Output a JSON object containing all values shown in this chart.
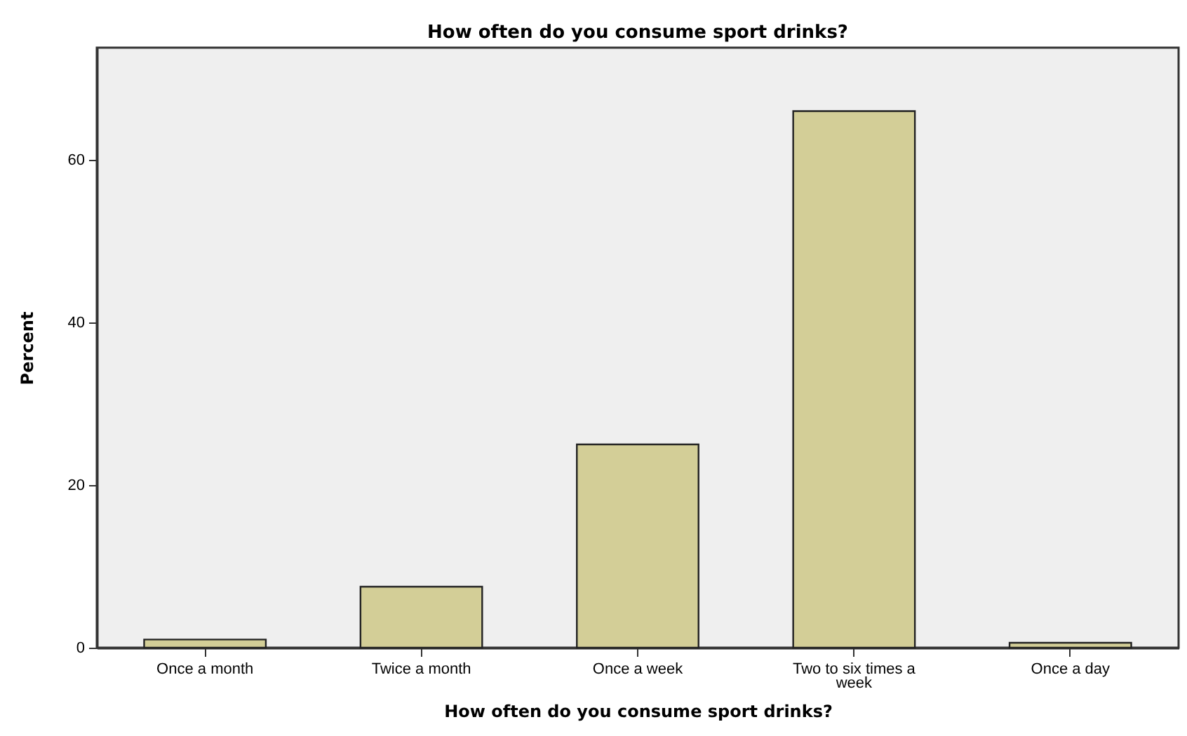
{
  "chart_data": {
    "type": "bar",
    "title": "How often do you consume sport drinks?",
    "xlabel": "How often do you consume sport drinks?",
    "ylabel": "Percent",
    "categories": [
      "Once a month",
      "Twice a month",
      "Once a week",
      "Two to six times a week",
      "Once a day"
    ],
    "values": [
      1.0,
      7.5,
      25,
      66,
      0.6
    ],
    "color": "#d3ce97",
    "ylim": [
      0,
      73.8
    ],
    "yticks": [
      0,
      20,
      40,
      60
    ],
    "grid": false
  }
}
